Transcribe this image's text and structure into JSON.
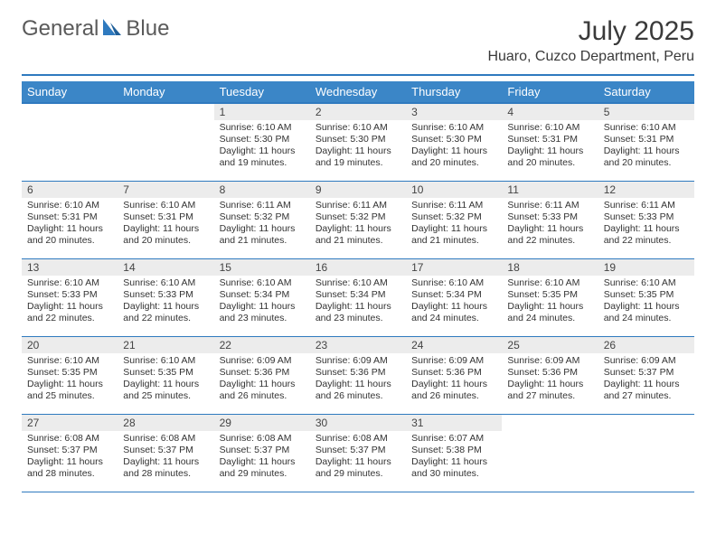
{
  "brand": {
    "part1": "General",
    "part2": "Blue"
  },
  "title": "July 2025",
  "location": "Huaro, Cuzco Department, Peru",
  "colors": {
    "header_bg": "#3b86c7",
    "rule": "#2f7abf",
    "daynum_bg": "#ececec",
    "text": "#333333",
    "logo_blue": "#2f7abf"
  },
  "weekdays": [
    "Sunday",
    "Monday",
    "Tuesday",
    "Wednesday",
    "Thursday",
    "Friday",
    "Saturday"
  ],
  "weeks": [
    [
      {
        "n": "",
        "sr": "",
        "ss": "",
        "dl": ""
      },
      {
        "n": "",
        "sr": "",
        "ss": "",
        "dl": ""
      },
      {
        "n": "1",
        "sr": "6:10 AM",
        "ss": "5:30 PM",
        "dl": "11 hours and 19 minutes."
      },
      {
        "n": "2",
        "sr": "6:10 AM",
        "ss": "5:30 PM",
        "dl": "11 hours and 19 minutes."
      },
      {
        "n": "3",
        "sr": "6:10 AM",
        "ss": "5:30 PM",
        "dl": "11 hours and 20 minutes."
      },
      {
        "n": "4",
        "sr": "6:10 AM",
        "ss": "5:31 PM",
        "dl": "11 hours and 20 minutes."
      },
      {
        "n": "5",
        "sr": "6:10 AM",
        "ss": "5:31 PM",
        "dl": "11 hours and 20 minutes."
      }
    ],
    [
      {
        "n": "6",
        "sr": "6:10 AM",
        "ss": "5:31 PM",
        "dl": "11 hours and 20 minutes."
      },
      {
        "n": "7",
        "sr": "6:10 AM",
        "ss": "5:31 PM",
        "dl": "11 hours and 20 minutes."
      },
      {
        "n": "8",
        "sr": "6:11 AM",
        "ss": "5:32 PM",
        "dl": "11 hours and 21 minutes."
      },
      {
        "n": "9",
        "sr": "6:11 AM",
        "ss": "5:32 PM",
        "dl": "11 hours and 21 minutes."
      },
      {
        "n": "10",
        "sr": "6:11 AM",
        "ss": "5:32 PM",
        "dl": "11 hours and 21 minutes."
      },
      {
        "n": "11",
        "sr": "6:11 AM",
        "ss": "5:33 PM",
        "dl": "11 hours and 22 minutes."
      },
      {
        "n": "12",
        "sr": "6:11 AM",
        "ss": "5:33 PM",
        "dl": "11 hours and 22 minutes."
      }
    ],
    [
      {
        "n": "13",
        "sr": "6:10 AM",
        "ss": "5:33 PM",
        "dl": "11 hours and 22 minutes."
      },
      {
        "n": "14",
        "sr": "6:10 AM",
        "ss": "5:33 PM",
        "dl": "11 hours and 22 minutes."
      },
      {
        "n": "15",
        "sr": "6:10 AM",
        "ss": "5:34 PM",
        "dl": "11 hours and 23 minutes."
      },
      {
        "n": "16",
        "sr": "6:10 AM",
        "ss": "5:34 PM",
        "dl": "11 hours and 23 minutes."
      },
      {
        "n": "17",
        "sr": "6:10 AM",
        "ss": "5:34 PM",
        "dl": "11 hours and 24 minutes."
      },
      {
        "n": "18",
        "sr": "6:10 AM",
        "ss": "5:35 PM",
        "dl": "11 hours and 24 minutes."
      },
      {
        "n": "19",
        "sr": "6:10 AM",
        "ss": "5:35 PM",
        "dl": "11 hours and 24 minutes."
      }
    ],
    [
      {
        "n": "20",
        "sr": "6:10 AM",
        "ss": "5:35 PM",
        "dl": "11 hours and 25 minutes."
      },
      {
        "n": "21",
        "sr": "6:10 AM",
        "ss": "5:35 PM",
        "dl": "11 hours and 25 minutes."
      },
      {
        "n": "22",
        "sr": "6:09 AM",
        "ss": "5:36 PM",
        "dl": "11 hours and 26 minutes."
      },
      {
        "n": "23",
        "sr": "6:09 AM",
        "ss": "5:36 PM",
        "dl": "11 hours and 26 minutes."
      },
      {
        "n": "24",
        "sr": "6:09 AM",
        "ss": "5:36 PM",
        "dl": "11 hours and 26 minutes."
      },
      {
        "n": "25",
        "sr": "6:09 AM",
        "ss": "5:36 PM",
        "dl": "11 hours and 27 minutes."
      },
      {
        "n": "26",
        "sr": "6:09 AM",
        "ss": "5:37 PM",
        "dl": "11 hours and 27 minutes."
      }
    ],
    [
      {
        "n": "27",
        "sr": "6:08 AM",
        "ss": "5:37 PM",
        "dl": "11 hours and 28 minutes."
      },
      {
        "n": "28",
        "sr": "6:08 AM",
        "ss": "5:37 PM",
        "dl": "11 hours and 28 minutes."
      },
      {
        "n": "29",
        "sr": "6:08 AM",
        "ss": "5:37 PM",
        "dl": "11 hours and 29 minutes."
      },
      {
        "n": "30",
        "sr": "6:08 AM",
        "ss": "5:37 PM",
        "dl": "11 hours and 29 minutes."
      },
      {
        "n": "31",
        "sr": "6:07 AM",
        "ss": "5:38 PM",
        "dl": "11 hours and 30 minutes."
      },
      {
        "n": "",
        "sr": "",
        "ss": "",
        "dl": ""
      },
      {
        "n": "",
        "sr": "",
        "ss": "",
        "dl": ""
      }
    ]
  ],
  "labels": {
    "sunrise": "Sunrise:",
    "sunset": "Sunset:",
    "daylight": "Daylight:"
  }
}
